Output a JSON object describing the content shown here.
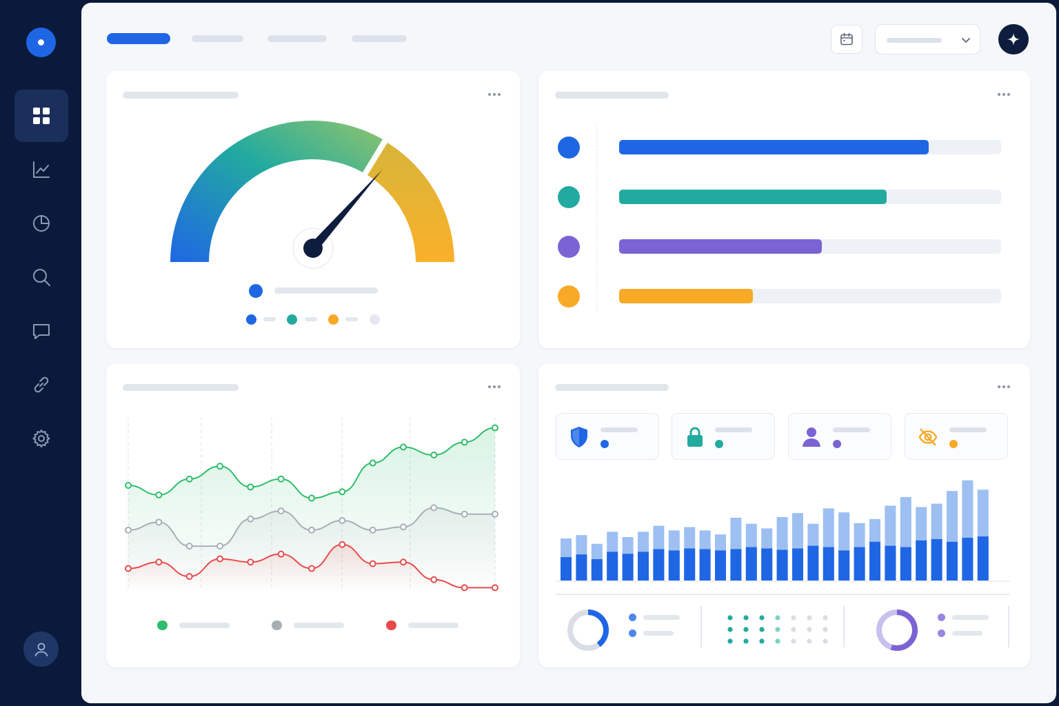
{
  "colors": {
    "blue": "#1f66e5",
    "teal": "#22aaa0",
    "purple": "#7b63d3",
    "amber": "#f8aa27",
    "green": "#2ebd6b",
    "gray": "#a8adb6",
    "red": "#e84a4a",
    "navy": "#0b1a3a"
  },
  "sidebar": {
    "items": [
      {
        "icon": "dashboard-icon",
        "active": true
      },
      {
        "icon": "line-chart-icon",
        "active": false
      },
      {
        "icon": "pie-chart-icon",
        "active": false
      },
      {
        "icon": "search-icon",
        "active": false
      },
      {
        "icon": "chat-icon",
        "active": false
      },
      {
        "icon": "link-icon",
        "active": false
      },
      {
        "icon": "gear-icon",
        "active": false
      }
    ],
    "profile_icon": "user-icon"
  },
  "header": {
    "active_tab": 0,
    "icons": [
      "calendar-icon",
      "chevron-down-icon",
      "sparkle-icon"
    ]
  },
  "gauge_card": {
    "value_fraction": 0.73,
    "segments": [
      "blue-to-green",
      "amber"
    ],
    "legend_colors": [
      "#1f66e5",
      "#22aaa0",
      "#f8aa27",
      "#e3e7ee"
    ]
  },
  "bar_list_card": {
    "rows": [
      {
        "color": "#1f66e5",
        "fraction": 0.81
      },
      {
        "color": "#22aaa0",
        "fraction": 0.7
      },
      {
        "color": "#7b63d3",
        "fraction": 0.53
      },
      {
        "color": "#f8aa27",
        "fraction": 0.35
      }
    ]
  },
  "line_chart_card": {
    "chart_data": {
      "type": "line",
      "x": [
        0,
        1,
        2,
        3,
        4,
        5,
        6,
        7,
        8,
        9,
        10,
        11,
        12
      ],
      "series": [
        {
          "color": "#2ebd6b",
          "values": [
            66,
            60,
            70,
            78,
            65,
            70,
            58,
            62,
            80,
            90,
            85,
            93,
            102
          ]
        },
        {
          "color": "#a8adb6",
          "values": [
            38,
            43,
            28,
            28,
            45,
            50,
            38,
            44,
            38,
            40,
            52,
            48,
            48
          ]
        },
        {
          "color": "#e84a4a",
          "values": [
            14,
            18,
            9,
            20,
            18,
            23,
            14,
            29,
            17,
            18,
            7,
            2,
            2
          ]
        }
      ],
      "ylim": [
        0,
        110
      ]
    },
    "legend_colors": [
      "#2ebd6b",
      "#a8adb6",
      "#e84a4a"
    ]
  },
  "security_card": {
    "stats": [
      {
        "icon": "shield-icon",
        "color": "#1f66e5"
      },
      {
        "icon": "lock-icon",
        "color": "#22aaa0"
      },
      {
        "icon": "user-icon",
        "color": "#7b63d3"
      },
      {
        "icon": "eye-off-icon",
        "color": "#f8aa27"
      }
    ],
    "chart_data": {
      "type": "bar",
      "series": [
        {
          "values": [
            35,
            39,
            32,
            43,
            40,
            43,
            47,
            45,
            48,
            47,
            45,
            47,
            50,
            48,
            46,
            48,
            52,
            50,
            45,
            50,
            58,
            52,
            50,
            60,
            62,
            58,
            64,
            66
          ]
        },
        {
          "values": [
            63,
            68,
            55,
            73,
            65,
            73,
            82,
            75,
            80,
            75,
            69,
            94,
            85,
            78,
            95,
            101,
            85,
            108,
            102,
            86,
            92,
            112,
            125,
            110,
            115,
            134,
            150,
            136
          ]
        }
      ],
      "ylim": [
        0,
        160
      ]
    },
    "donuts": [
      {
        "icon": "donut-chart-icon",
        "fraction": 0.4,
        "color": "#1f66e5"
      },
      {
        "icon": "donut-chart-icon",
        "fraction": 0.55,
        "color": "#7b63d3"
      }
    ]
  }
}
